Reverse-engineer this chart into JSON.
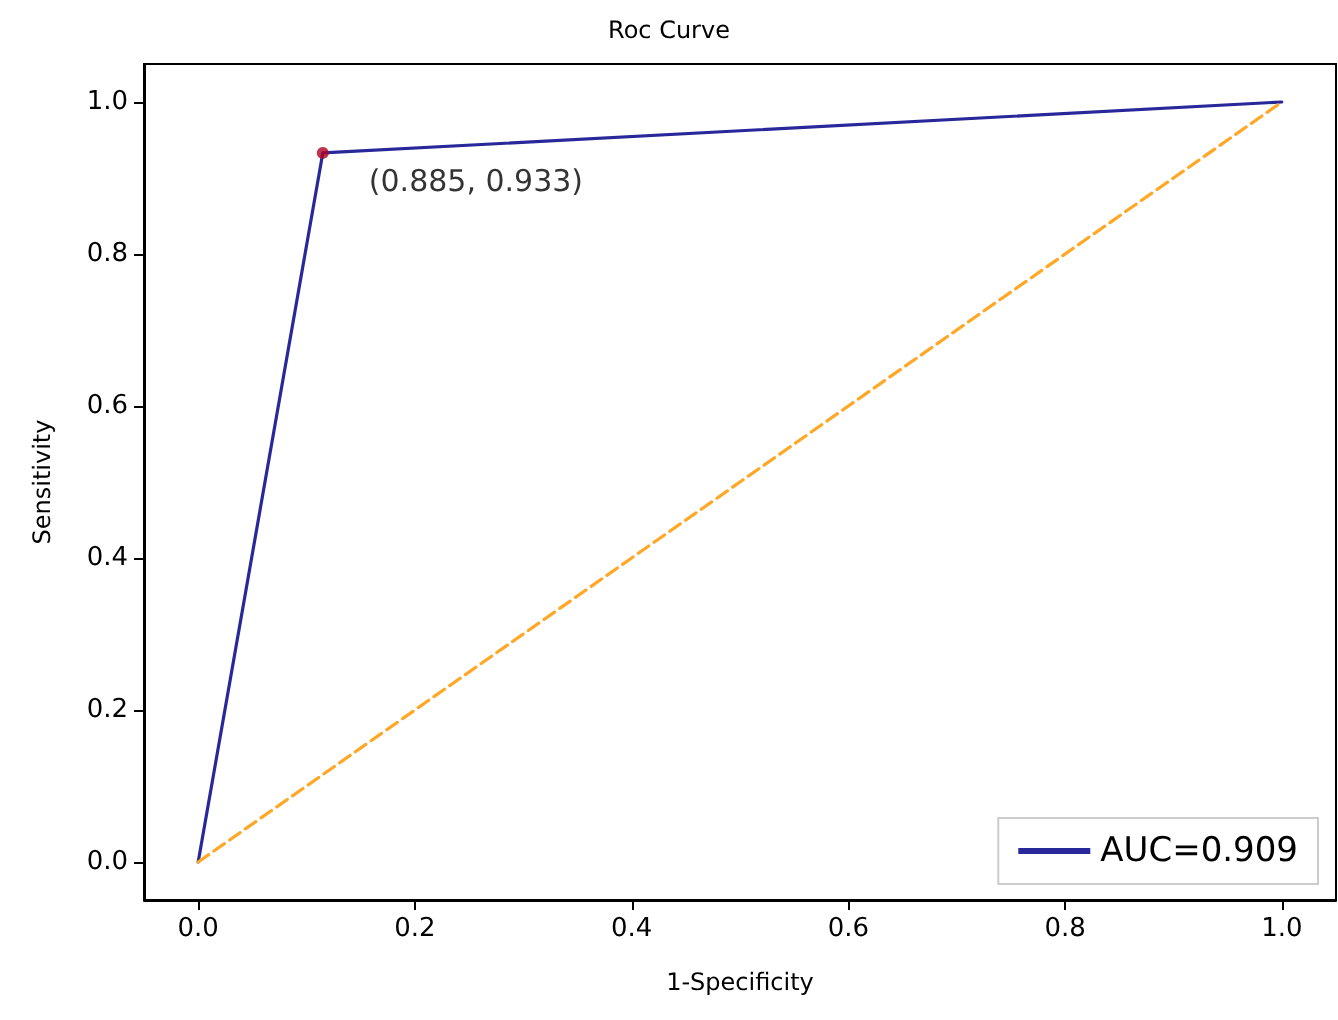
{
  "chart_data": {
    "type": "line",
    "title": "Roc Curve",
    "xlabel": "1-Specificity",
    "ylabel": "Sensitivity",
    "series": [
      {
        "name": "AUC=0.909",
        "color": "#28289a",
        "x": [
          0,
          0.115,
          1
        ],
        "values": [
          0,
          0.933,
          1
        ],
        "marker": "none",
        "line_style": "solid"
      },
      {
        "color": "#ffa726",
        "x": [
          0,
          1
        ],
        "values": [
          0,
          1
        ],
        "marker": "none",
        "line_style": "dashed"
      },
      {
        "type": "scatter",
        "color": "#b00020",
        "x": [
          0.115
        ],
        "values": [
          0.933
        ],
        "marker": "circle"
      }
    ],
    "annotations": [
      {
        "text": "(0.885, 0.933)",
        "x": 0.115,
        "y": 0.933
      }
    ],
    "xlim": [
      -0.05,
      1.05
    ],
    "ylim": [
      -0.05,
      1.05
    ],
    "xticks": [
      {
        "value": 0,
        "label": "0.0"
      },
      {
        "value": 0.2,
        "label": "0.2"
      },
      {
        "value": 0.4,
        "label": "0.4"
      },
      {
        "value": 0.6,
        "label": "0.6"
      },
      {
        "value": 0.8,
        "label": "0.8"
      },
      {
        "value": 1,
        "label": "1.0"
      }
    ],
    "yticks": [
      {
        "value": 0,
        "label": "0.0"
      },
      {
        "value": 0.2,
        "label": "0.2"
      },
      {
        "value": 0.4,
        "label": "0.4"
      },
      {
        "value": 0.6,
        "label": "0.6"
      },
      {
        "value": 0.8,
        "label": "0.8"
      },
      {
        "value": 1,
        "label": "1.0"
      }
    ],
    "grid": false,
    "legend": "bottom right"
  }
}
